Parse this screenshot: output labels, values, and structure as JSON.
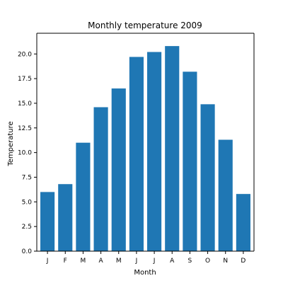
{
  "chart_data": {
    "type": "bar",
    "title": "Monthly temperature 2009",
    "xlabel": "Month",
    "ylabel": "Temperature",
    "categories": [
      "J",
      "F",
      "M",
      "A",
      "M",
      "J",
      "J",
      "A",
      "S",
      "O",
      "N",
      "D"
    ],
    "values": [
      6.0,
      6.8,
      11.0,
      14.6,
      16.5,
      19.7,
      20.2,
      20.8,
      18.2,
      14.9,
      11.3,
      5.8
    ],
    "ylim": [
      0,
      22.1
    ],
    "yticks": [
      0.0,
      2.5,
      5.0,
      7.5,
      10.0,
      12.5,
      15.0,
      17.5,
      20.0
    ],
    "ytick_labels": [
      "0.0",
      "2.5",
      "5.0",
      "7.5",
      "10.0",
      "12.5",
      "15.0",
      "17.5",
      "20.0"
    ],
    "grid": false,
    "colors": {
      "bar": "#1f77b4",
      "axis": "#000000"
    }
  }
}
